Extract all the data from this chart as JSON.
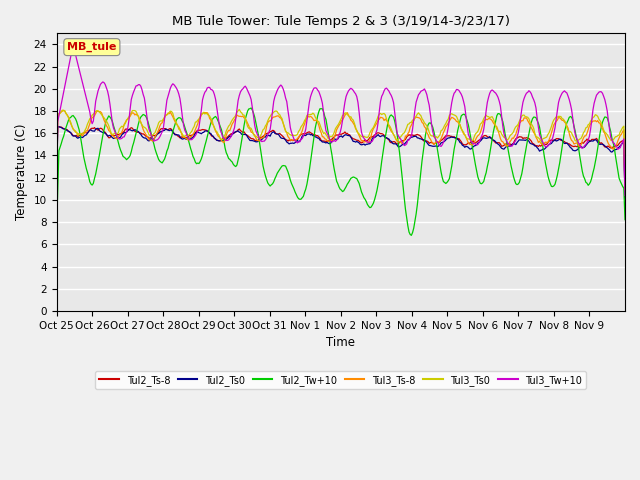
{
  "title": "MB Tule Tower: Tule Temps 2 & 3 (3/19/14-3/23/17)",
  "xlabel": "Time",
  "ylabel": "Temperature (C)",
  "ylim": [
    0,
    25
  ],
  "yticks": [
    0,
    2,
    4,
    6,
    8,
    10,
    12,
    14,
    16,
    18,
    20,
    22,
    24
  ],
  "xtick_labels": [
    "Oct 25",
    "Oct 26",
    "Oct 27",
    "Oct 28",
    "Oct 29",
    "Oct 30",
    "Oct 31",
    "Nov 1",
    "Nov 2",
    "Nov 3",
    "Nov 4",
    "Nov 5",
    "Nov 6",
    "Nov 7",
    "Nov 8",
    "Nov 9"
  ],
  "legend_labels": [
    "Tul2_Ts-8",
    "Tul2_Ts0",
    "Tul2_Tw+10",
    "Tul3_Ts-8",
    "Tul3_Ts0",
    "Tul3_Tw+10"
  ],
  "line_colors": [
    "#cc0000",
    "#00008b",
    "#00cc00",
    "#ff8c00",
    "#cccc00",
    "#cc00cc"
  ],
  "annotation_text": "MB_tule",
  "annotation_color": "#cc0000",
  "annotation_bg": "#ffff99",
  "plot_bg": "#e8e8e8",
  "fig_bg": "#f0f0f0",
  "grid_color": "#ffffff",
  "n_points": 480
}
